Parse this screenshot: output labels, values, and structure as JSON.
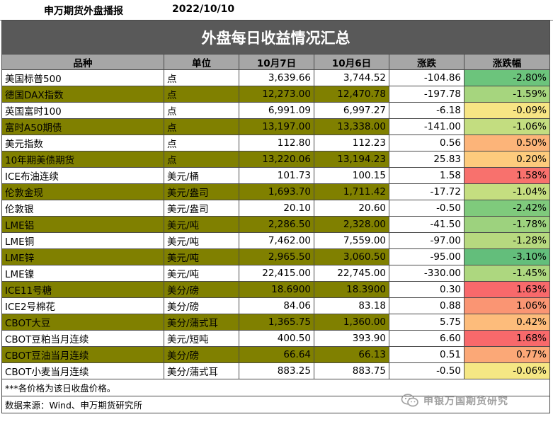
{
  "header": {
    "source_label": "申万期货外盘播报",
    "date": "2022/10/10"
  },
  "title": "外盘每日收益情况汇总",
  "columns": [
    "品种",
    "单位",
    "10月7日",
    "10月6日",
    "涨跌",
    "涨跌幅"
  ],
  "rows": [
    {
      "name": "美国标普500",
      "unit": "点",
      "d1": "3,639.66",
      "d2": "3,744.52",
      "chg": "-104.86",
      "pct": "-2.80%",
      "shade": "white",
      "pct_color": "#6cc47c"
    },
    {
      "name": "德国DAX指数",
      "unit": "点",
      "d1": "12,273.00",
      "d2": "12,470.78",
      "chg": "-197.78",
      "pct": "-1.59%",
      "shade": "olive",
      "pct_color": "#a6d57e"
    },
    {
      "name": "英国富时100",
      "unit": "点",
      "d1": "6,991.09",
      "d2": "6,997.27",
      "chg": "-6.18",
      "pct": "-0.09%",
      "shade": "white",
      "pct_color": "#f7e584"
    },
    {
      "name": "富时A50期债",
      "unit": "点",
      "d1": "13,197.00",
      "d2": "13,338.00",
      "chg": "-141.00",
      "pct": "-1.06%",
      "shade": "olive",
      "pct_color": "#c3dd80"
    },
    {
      "name": "美元指数",
      "unit": "点",
      "d1": "112.80",
      "d2": "112.23",
      "chg": "0.56",
      "pct": "0.50%",
      "shade": "white",
      "pct_color": "#fcb479"
    },
    {
      "name": "10年期美债期货",
      "unit": "点",
      "d1": "13,220.06",
      "d2": "13,194.23",
      "chg": "25.83",
      "pct": "0.20%",
      "shade": "olive",
      "pct_color": "#fdcb7d"
    },
    {
      "name": "ICE布油连续",
      "unit": "美元/桶",
      "d1": "101.73",
      "d2": "100.15",
      "chg": "1.58",
      "pct": "1.58%",
      "shade": "white",
      "pct_color": "#f8716d"
    },
    {
      "name": "伦敦金现",
      "unit": "美元/盎司",
      "d1": "1,693.70",
      "d2": "1,711.42",
      "chg": "-17.72",
      "pct": "-1.04%",
      "shade": "olive",
      "pct_color": "#c5de80"
    },
    {
      "name": "伦敦银",
      "unit": "美元/盎司",
      "d1": "20.10",
      "d2": "20.60",
      "chg": "-0.50",
      "pct": "-2.42%",
      "shade": "white",
      "pct_color": "#7fca7c"
    },
    {
      "name": "LME铝",
      "unit": "美元/吨",
      "d1": "2,286.50",
      "d2": "2,328.00",
      "chg": "-41.50",
      "pct": "-1.78%",
      "shade": "olive",
      "pct_color": "#9dd27e"
    },
    {
      "name": "LME铜",
      "unit": "美元/吨",
      "d1": "7,462.00",
      "d2": "7,559.00",
      "chg": "-97.00",
      "pct": "-1.28%",
      "shade": "white",
      "pct_color": "#b7d97f"
    },
    {
      "name": "LME锌",
      "unit": "美元/吨",
      "d1": "2,965.50",
      "d2": "3,060.50",
      "chg": "-95.00",
      "pct": "-3.10%",
      "shade": "olive",
      "pct_color": "#63be7b"
    },
    {
      "name": "LME镍",
      "unit": "美元/吨",
      "d1": "22,415.00",
      "d2": "22,745.00",
      "chg": "-330.00",
      "pct": "-1.45%",
      "shade": "white",
      "pct_color": "#add77f"
    },
    {
      "name": "ICE11号糖",
      "unit": "美分/磅",
      "d1": "18.6900",
      "d2": "18.3900",
      "chg": "0.30",
      "pct": "1.63%",
      "shade": "olive",
      "pct_color": "#f8696b"
    },
    {
      "name": "ICE2号棉花",
      "unit": "美分/磅",
      "d1": "84.06",
      "d2": "83.18",
      "chg": "0.88",
      "pct": "1.06%",
      "shade": "white",
      "pct_color": "#fa9573"
    },
    {
      "name": "CBOT大豆",
      "unit": "美分/蒲式耳",
      "d1": "1,365.75",
      "d2": "1,360.00",
      "chg": "5.75",
      "pct": "0.42%",
      "shade": "olive",
      "pct_color": "#fdbc7b"
    },
    {
      "name": "CBOT豆粕当月连续",
      "unit": "美元/短吨",
      "d1": "400.50",
      "d2": "393.90",
      "chg": "6.60",
      "pct": "1.68%",
      "shade": "white",
      "pct_color": "#f8696b"
    },
    {
      "name": "CBOT豆油当月连续",
      "unit": "美分/磅",
      "d1": "66.64",
      "d2": "66.13",
      "chg": "0.51",
      "pct": "0.77%",
      "shade": "olive",
      "pct_color": "#fba877"
    },
    {
      "name": "CBOT小麦当月连续",
      "unit": "美分/蒲式耳",
      "d1": "883.25",
      "d2": "883.75",
      "chg": "-0.50",
      "pct": "-0.06%",
      "shade": "white",
      "pct_color": "#f5e784"
    }
  ],
  "footnotes": {
    "note": "***各价格为该日收盘价格。",
    "source": "数据来源：Wind、申万期货研究所"
  },
  "watermark": "申银万国期货研究"
}
